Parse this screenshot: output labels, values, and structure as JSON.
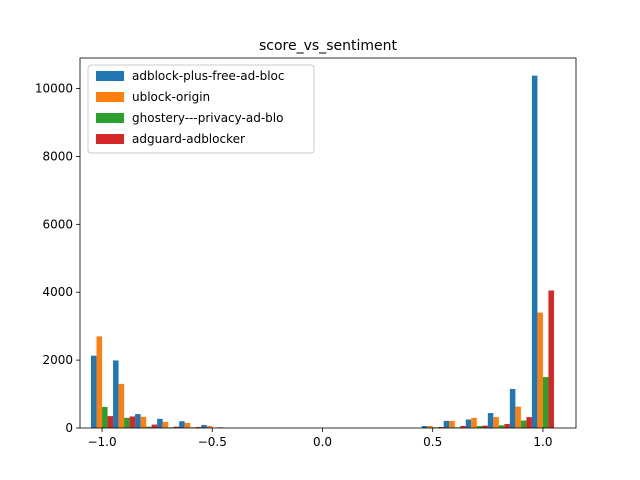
{
  "chart_data": {
    "type": "bar",
    "title": "score_vs_sentiment",
    "xlabel": "",
    "ylabel": "",
    "xlim": [
      -1.1,
      1.15
    ],
    "ylim": [
      0,
      10900
    ],
    "xticks": [
      {
        "value": -1.0,
        "label": "−1.0"
      },
      {
        "value": -0.5,
        "label": "−0.5"
      },
      {
        "value": 0.0,
        "label": "0.0"
      },
      {
        "value": 0.5,
        "label": "0.5"
      },
      {
        "value": 1.0,
        "label": "1.0"
      }
    ],
    "yticks": [
      {
        "value": 0,
        "label": "0"
      },
      {
        "value": 2000,
        "label": "2000"
      },
      {
        "value": 4000,
        "label": "4000"
      },
      {
        "value": 6000,
        "label": "6000"
      },
      {
        "value": 8000,
        "label": "8000"
      },
      {
        "value": 10000,
        "label": "10000"
      }
    ],
    "bin_width": 0.1,
    "bin_centers": [
      -1.0,
      -0.9,
      -0.8,
      -0.7,
      -0.6,
      -0.5,
      -0.4,
      -0.3,
      -0.2,
      -0.1,
      0.0,
      0.1,
      0.2,
      0.3,
      0.4,
      0.5,
      0.6,
      0.7,
      0.8,
      0.9,
      1.0
    ],
    "legend_position": "top-left",
    "series": [
      {
        "name": "adblock-plus-free-ad-bloc",
        "color": "#1f77b4",
        "values": [
          2130,
          1990,
          410,
          270,
          200,
          90,
          0,
          0,
          0,
          0,
          0,
          0,
          0,
          0,
          0,
          60,
          210,
          250,
          440,
          1150,
          10380
        ]
      },
      {
        "name": "ublock-origin",
        "color": "#ff7f0e",
        "values": [
          2700,
          1300,
          330,
          180,
          150,
          60,
          0,
          0,
          0,
          0,
          0,
          0,
          0,
          0,
          0,
          60,
          210,
          300,
          320,
          630,
          3400
        ]
      },
      {
        "name": "ghostery---privacy-ad-blo",
        "color": "#2ca02c",
        "values": [
          620,
          300,
          40,
          20,
          20,
          10,
          0,
          0,
          0,
          0,
          0,
          0,
          0,
          0,
          0,
          20,
          20,
          60,
          80,
          220,
          1500
        ]
      },
      {
        "name": "adguard-adblocker",
        "color": "#d62728",
        "values": [
          350,
          340,
          100,
          40,
          30,
          20,
          0,
          0,
          0,
          0,
          0,
          0,
          0,
          0,
          0,
          30,
          60,
          70,
          120,
          320,
          4050
        ]
      }
    ]
  }
}
